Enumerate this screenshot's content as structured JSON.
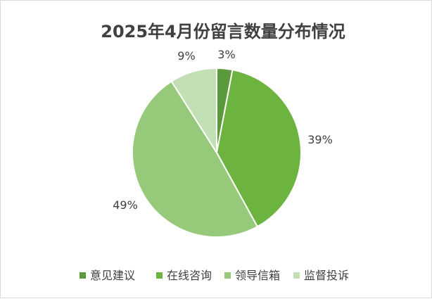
{
  "chart_data": {
    "type": "pie",
    "title": "2025年4月份留言数量分布情况",
    "categories": [
      "意见建议",
      "在线咨询",
      "领导信箱",
      "监督投诉"
    ],
    "values": [
      3,
      39,
      49,
      9
    ],
    "labels": [
      "3%",
      "39%",
      "49%",
      "9%"
    ],
    "colors": [
      "#5b9a3c",
      "#6db33f",
      "#97c97a",
      "#c3e0b4"
    ],
    "legend_position": "bottom"
  }
}
